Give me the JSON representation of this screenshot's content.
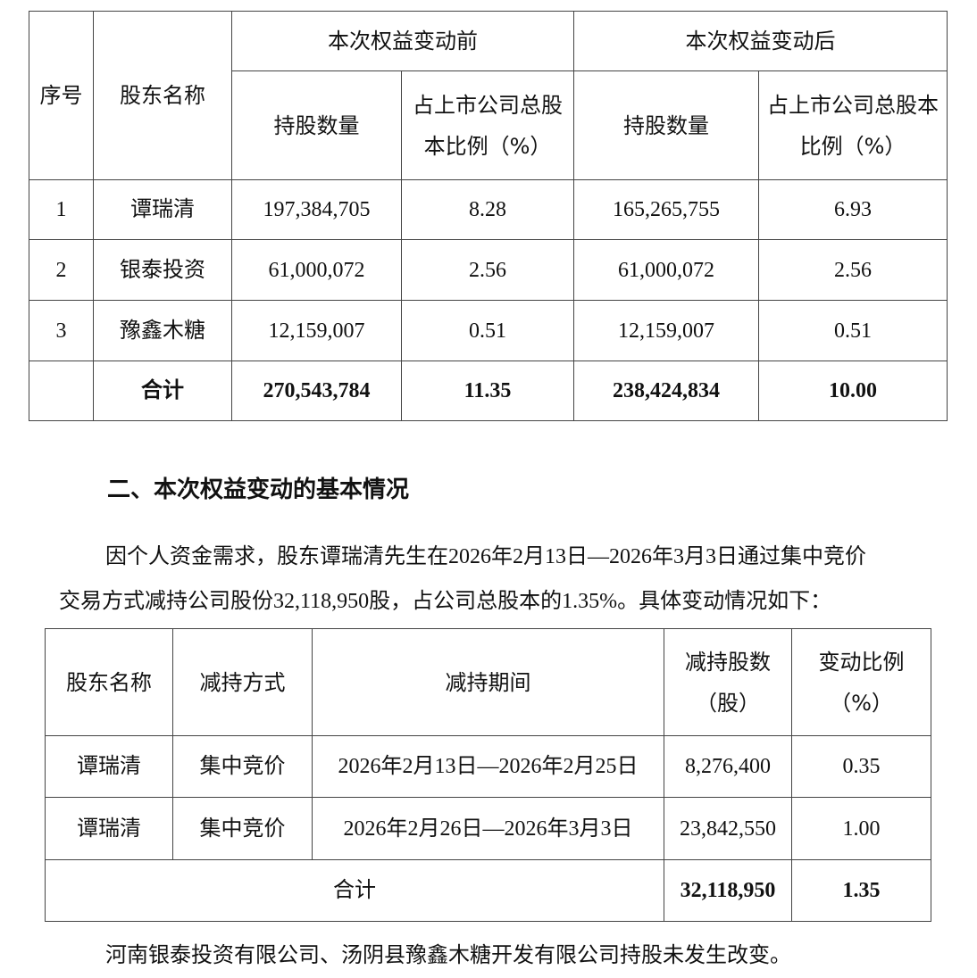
{
  "table1": {
    "headers": {
      "seq": "序号",
      "name": "股东名称",
      "before": "本次权益变动前",
      "after": "本次权益变动后",
      "shares": "持股数量",
      "ratio_before": "占上市公司总股本比例（%）",
      "ratio_after": "占上市公司总股本比例（%）"
    },
    "rows": [
      {
        "seq": "1",
        "name": "谭瑞清",
        "shares_before": "197,384,705",
        "ratio_before": "8.28",
        "shares_after": "165,265,755",
        "ratio_after": "6.93"
      },
      {
        "seq": "2",
        "name": "银泰投资",
        "shares_before": "61,000,072",
        "ratio_before": "2.56",
        "shares_after": "61,000,072",
        "ratio_after": "2.56"
      },
      {
        "seq": "3",
        "name": "豫鑫木糖",
        "shares_before": "12,159,007",
        "ratio_before": "0.51",
        "shares_after": "12,159,007",
        "ratio_after": "0.51"
      }
    ],
    "total": {
      "label": "合计",
      "shares_before": "270,543,784",
      "ratio_before": "11.35",
      "shares_after": "238,424,834",
      "ratio_after": "10.00"
    }
  },
  "section": {
    "heading": "二、本次权益变动的基本情况",
    "para_line1": "因个人资金需求，股东谭瑞清先生在2026年2月13日—2026年3月3日通过集中竞价",
    "para_line2": "交易方式减持公司股份32,118,950股，占公司总股本的1.35%。具体变动情况如下：",
    "footer": "河南银泰投资有限公司、汤阴县豫鑫木糖开发有限公司持股未发生改变。"
  },
  "table2": {
    "headers": {
      "name": "股东名称",
      "method": "减持方式",
      "period": "减持期间",
      "shares": "减持股数（股）",
      "ratio": "变动比例（%）"
    },
    "rows": [
      {
        "name": "谭瑞清",
        "method": "集中竞价",
        "period": "2026年2月13日—2026年2月25日",
        "shares": "8,276,400",
        "ratio": "0.35"
      },
      {
        "name": "谭瑞清",
        "method": "集中竞价",
        "period": "2026年2月26日—2026年3月3日",
        "shares": "23,842,550",
        "ratio": "1.00"
      }
    ],
    "total": {
      "label": "合计",
      "shares": "32,118,950",
      "ratio": "1.35"
    }
  }
}
